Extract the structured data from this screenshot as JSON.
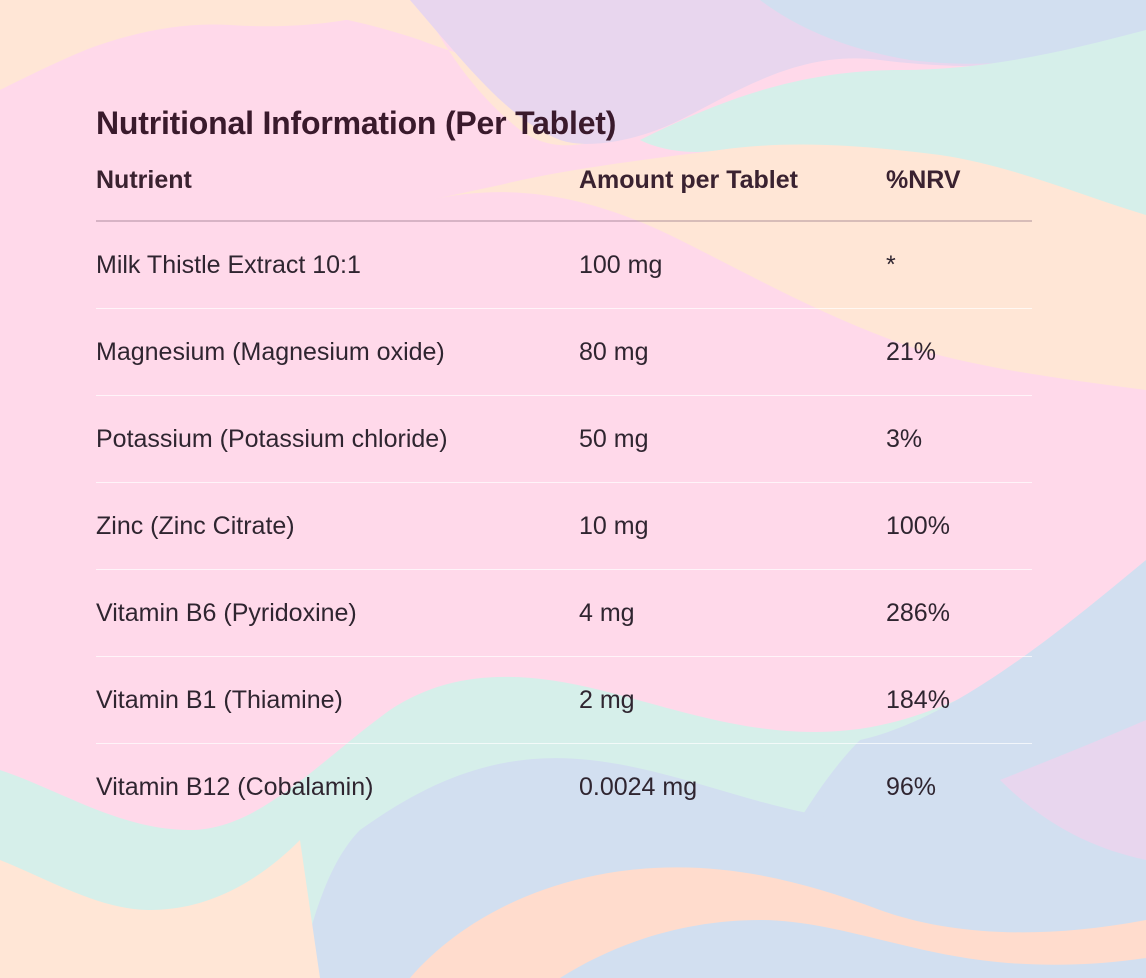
{
  "table": {
    "title": "Nutritional Information (Per Tablet)",
    "headers": {
      "nutrient": "Nutrient",
      "amount": "Amount per Tablet",
      "nrv": "%NRV"
    },
    "rows": [
      {
        "nutrient": "Milk Thistle Extract 10:1",
        "amount": "100 mg",
        "nrv": "*"
      },
      {
        "nutrient": "Magnesium (Magnesium oxide)",
        "amount": "80 mg",
        "nrv": "21%"
      },
      {
        "nutrient": "Potassium (Potassium chloride)",
        "amount": "50 mg",
        "nrv": "3%"
      },
      {
        "nutrient": "Zinc (Zinc Citrate)",
        "amount": "10 mg",
        "nrv": "100%"
      },
      {
        "nutrient": "Vitamin B6 (Pyridoxine)",
        "amount": "4 mg",
        "nrv": "286%"
      },
      {
        "nutrient": "Vitamin B1 (Thiamine)",
        "amount": "2 mg",
        "nrv": "184%"
      },
      {
        "nutrient": "Vitamin B12 (Cobalamin)",
        "amount": "0.0024 mg",
        "nrv": "96%"
      }
    ]
  },
  "colors": {
    "pink": "#ffd9ea",
    "peach": "#ffe6d6",
    "lavender": "#e8d6ee",
    "mint": "#d6efea",
    "periwinkle": "#d2dff0",
    "text": "#2f2530",
    "heading": "#3a1a2c"
  }
}
